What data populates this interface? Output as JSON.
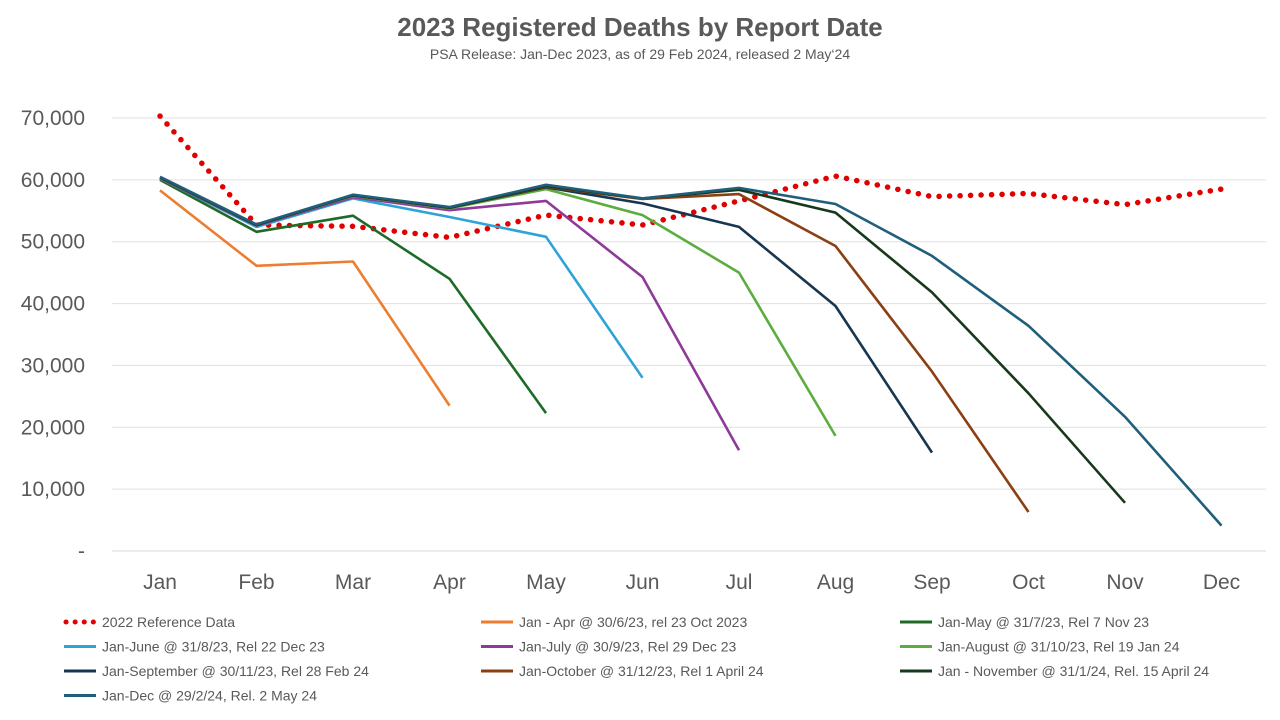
{
  "chart_data": {
    "type": "line",
    "title": "2023 Registered Deaths by Report Date",
    "subtitle": "PSA Release: Jan-Dec 2023, as of 29 Feb 2024, released 2 May‘24",
    "xlabel": "",
    "ylabel": "",
    "categories": [
      "Jan",
      "Feb",
      "Mar",
      "Apr",
      "May",
      "Jun",
      "Jul",
      "Aug",
      "Sep",
      "Oct",
      "Nov",
      "Dec"
    ],
    "ylim": [
      0,
      70000
    ],
    "yticks": [
      0,
      10000,
      20000,
      30000,
      40000,
      50000,
      60000,
      70000
    ],
    "ytick_labels": [
      "-",
      "10,000",
      "20,000",
      "30,000",
      "40,000",
      "50,000",
      "60,000",
      "70,000"
    ],
    "grid": true,
    "legend_position": "bottom",
    "series": [
      {
        "name": "2022 Reference Data",
        "color": "#e00000",
        "style": "dotted",
        "values": [
          70300,
          52700,
          52500,
          50700,
          54300,
          52700,
          56600,
          60600,
          57300,
          57800,
          56000,
          58500
        ]
      },
      {
        "name": "Jan - Apr @ 30/6/23, rel 23 Oct 2023",
        "color": "#ed7d31",
        "style": "solid",
        "values": [
          58300,
          46100,
          46800,
          23500,
          null,
          null,
          null,
          null,
          null,
          null,
          null,
          null
        ]
      },
      {
        "name": "Jan-May @ 31/7/23, Rel 7 Nov 23",
        "color": "#1e6b28",
        "style": "solid",
        "values": [
          60000,
          51600,
          54200,
          44000,
          22300,
          null,
          null,
          null,
          null,
          null,
          null,
          null
        ]
      },
      {
        "name": "Jan-June @ 31/8/23, Rel 22 Dec 23",
        "color": "#2ea3d8",
        "style": "solid",
        "values": [
          60200,
          52400,
          57000,
          54000,
          50800,
          28000,
          null,
          null,
          null,
          null,
          null,
          null
        ]
      },
      {
        "name": "Jan-July @ 30/9/23, Rel 29 Dec 23",
        "color": "#8e3a99",
        "style": "solid",
        "values": [
          60200,
          52600,
          57200,
          55100,
          56600,
          44300,
          16300,
          null,
          null,
          null,
          null,
          null
        ]
      },
      {
        "name": "Jan-August @ 31/10/23, Rel 19 Jan 24",
        "color": "#5bad3e",
        "style": "solid",
        "values": [
          60300,
          52700,
          57400,
          55400,
          58500,
          54300,
          45000,
          18600,
          null,
          null,
          null,
          null
        ]
      },
      {
        "name": "Jan-September @ 30/11/23, Rel 28 Feb 24",
        "color": "#173650",
        "style": "solid",
        "values": [
          60400,
          52700,
          57500,
          55500,
          58800,
          56200,
          52400,
          39600,
          15900,
          null,
          null,
          null
        ]
      },
      {
        "name": "Jan-October @ 31/12/23, Rel 1 April 24",
        "color": "#8b3f13",
        "style": "solid",
        "values": [
          60400,
          52700,
          57500,
          55500,
          58900,
          56900,
          57700,
          49300,
          29000,
          6300,
          null,
          null
        ]
      },
      {
        "name": "Jan - November @ 31/1/24, Rel. 15 April 24",
        "color": "#16391c",
        "style": "solid",
        "values": [
          60400,
          52700,
          57500,
          55500,
          59000,
          57000,
          58400,
          54700,
          41800,
          25500,
          7800,
          null
        ]
      },
      {
        "name": "Jan-Dec @ 29/2/24, Rel. 2 May 24",
        "color": "#1f5f7c",
        "style": "solid",
        "values": [
          60500,
          52800,
          57600,
          55600,
          59200,
          57000,
          58700,
          56100,
          47700,
          36400,
          21700,
          4100
        ]
      }
    ]
  }
}
